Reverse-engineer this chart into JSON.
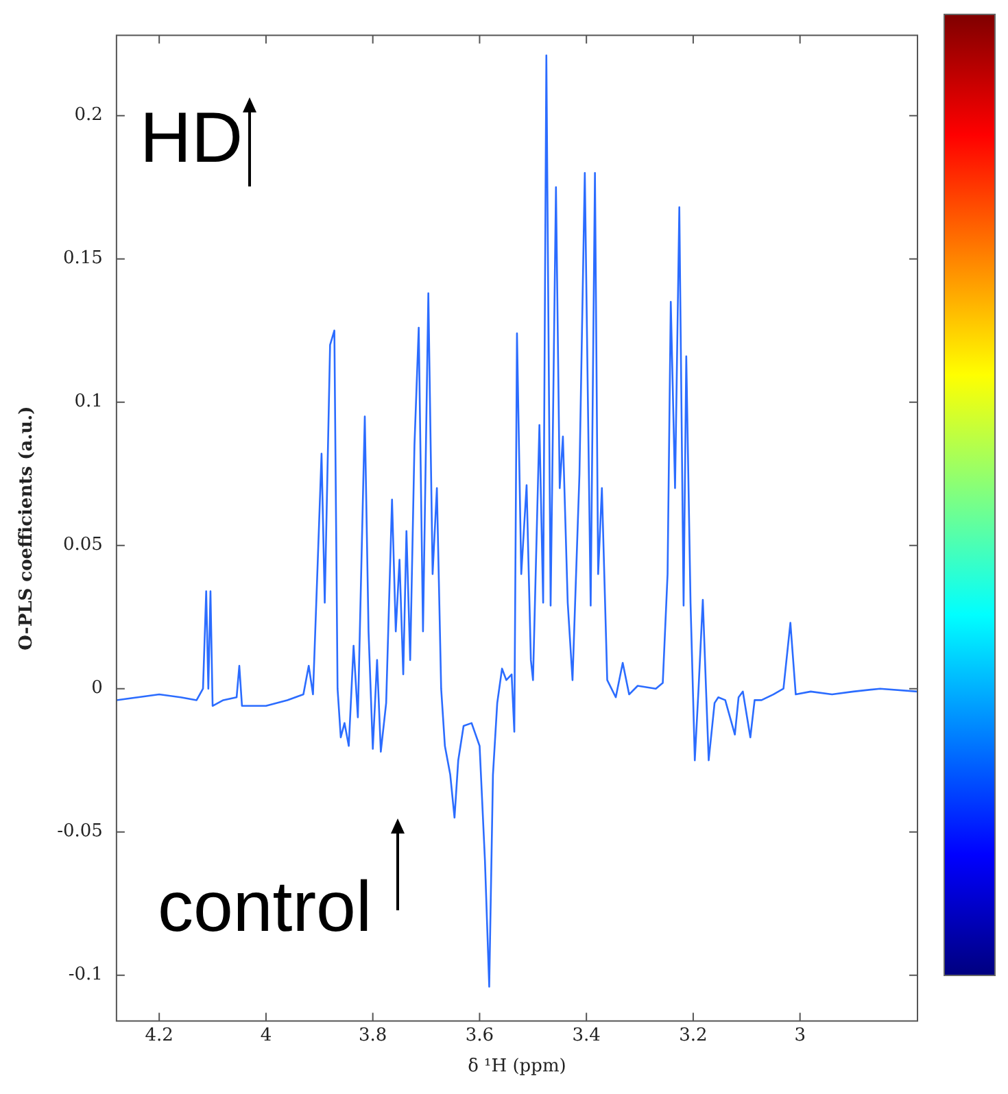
{
  "chart_data": {
    "type": "line",
    "xlabel": "δ ¹H (ppm)",
    "ylabel": "O-PLS coefficients (a.u.)",
    "annotations": [
      "HD",
      "control"
    ],
    "xlim": [
      4.28,
      2.78
    ],
    "xticks": [
      4.2,
      4,
      3.8,
      3.6,
      3.4,
      3.2,
      3
    ],
    "ylim": [
      -0.116,
      0.228
    ],
    "yticks": [
      -0.1,
      -0.05,
      0,
      0.05,
      0.1,
      0.15,
      0.2
    ],
    "grid": false,
    "legend": false,
    "marker": "none",
    "line_style": "solid",
    "series": [
      {
        "color": "#2b6cff",
        "x": [
          4.28,
          4.24,
          4.2,
          4.16,
          4.13,
          4.118,
          4.112,
          4.108,
          4.104,
          4.1,
          4.08,
          4.055,
          4.05,
          4.045,
          4.0,
          3.96,
          3.93,
          3.92,
          3.912,
          3.903,
          3.896,
          3.89,
          3.88,
          3.872,
          3.866,
          3.86,
          3.853,
          3.845,
          3.836,
          3.828,
          3.815,
          3.808,
          3.8,
          3.792,
          3.785,
          3.775,
          3.764,
          3.757,
          3.75,
          3.743,
          3.737,
          3.73,
          3.722,
          3.714,
          3.706,
          3.696,
          3.688,
          3.68,
          3.672,
          3.665,
          3.655,
          3.647,
          3.64,
          3.63,
          3.615,
          3.6,
          3.59,
          3.582,
          3.575,
          3.567,
          3.558,
          3.55,
          3.54,
          3.535,
          3.53,
          3.522,
          3.512,
          3.504,
          3.5,
          3.488,
          3.481,
          3.475,
          3.467,
          3.457,
          3.45,
          3.444,
          3.435,
          3.426,
          3.413,
          3.403,
          3.392,
          3.384,
          3.378,
          3.371,
          3.361,
          3.345,
          3.332,
          3.32,
          3.304,
          3.27,
          3.257,
          3.248,
          3.242,
          3.234,
          3.226,
          3.218,
          3.213,
          3.205,
          3.197,
          3.19,
          3.182,
          3.176,
          3.171,
          3.16,
          3.153,
          3.14,
          3.122,
          3.115,
          3.107,
          3.093,
          3.085,
          3.072,
          3.05,
          3.031,
          3.018,
          3.008,
          2.98,
          2.94,
          2.9,
          2.85,
          2.78
        ],
        "values": [
          -0.004,
          -0.003,
          -0.002,
          -0.003,
          -0.004,
          0.0,
          0.034,
          0.0,
          0.034,
          -0.006,
          -0.004,
          -0.003,
          0.008,
          -0.006,
          -0.006,
          -0.004,
          -0.002,
          0.008,
          -0.002,
          0.045,
          0.082,
          0.03,
          0.12,
          0.125,
          0.0,
          -0.017,
          -0.012,
          -0.02,
          0.015,
          -0.01,
          0.095,
          0.02,
          -0.021,
          0.01,
          -0.022,
          -0.005,
          0.066,
          0.02,
          0.045,
          0.005,
          0.055,
          0.01,
          0.085,
          0.126,
          0.02,
          0.138,
          0.04,
          0.07,
          0.0,
          -0.02,
          -0.03,
          -0.045,
          -0.025,
          -0.013,
          -0.012,
          -0.02,
          -0.06,
          -0.104,
          -0.03,
          -0.005,
          0.007,
          0.003,
          0.005,
          -0.015,
          0.124,
          0.04,
          0.071,
          0.01,
          0.003,
          0.092,
          0.03,
          0.221,
          0.029,
          0.175,
          0.07,
          0.088,
          0.03,
          0.003,
          0.075,
          0.18,
          0.029,
          0.18,
          0.04,
          0.07,
          0.003,
          -0.003,
          0.009,
          -0.002,
          0.001,
          0.0,
          0.002,
          0.04,
          0.135,
          0.07,
          0.168,
          0.029,
          0.116,
          0.03,
          -0.025,
          0.0,
          0.031,
          0.0,
          -0.025,
          -0.005,
          -0.003,
          -0.004,
          -0.016,
          -0.003,
          -0.001,
          -0.017,
          -0.004,
          -0.004,
          -0.002,
          0.0,
          0.023,
          -0.002,
          -0.001,
          -0.002,
          -0.001,
          0.0,
          -0.001
        ]
      }
    ]
  }
}
